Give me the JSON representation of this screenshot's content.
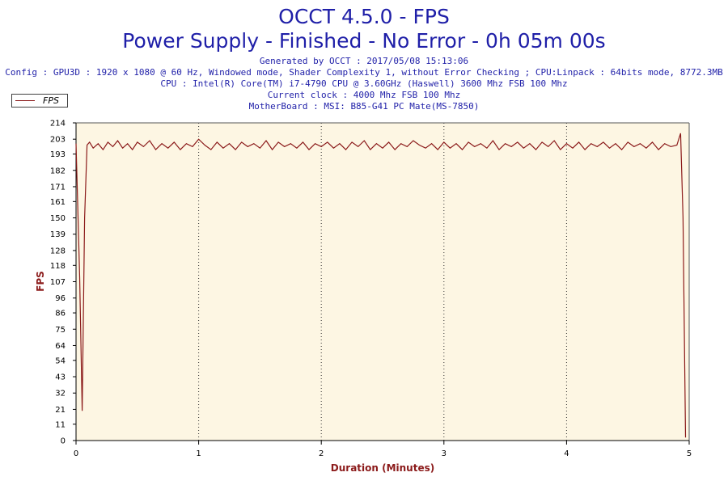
{
  "header": {
    "title": "OCCT 4.5.0 - FPS",
    "subtitle": "Power Supply - Finished - No Error - 0h 05m 00s",
    "info_lines": [
      "Generated by OCCT : 2017/05/08 15:13:06",
      "Config : GPU3D : 1920 x 1080 @ 60 Hz, Windowed mode, Shader Complexity 1, without Error Checking ; CPU:Linpack : 64bits mode, 8772.3MB",
      "CPU : Intel(R) Core(TM) i7-4790 CPU @ 3.60GHz (Haswell) 3600 Mhz FSB 100 Mhz",
      "Current clock : 4000 Mhz FSB 100 Mhz",
      "MotherBoard : MSI: B85-G41 PC Mate(MS-7850)"
    ]
  },
  "colors": {
    "title": "#1f1fa8",
    "series": "#8b1a1a",
    "plot_background": "#fdf6e3",
    "axis_label": "#8b1a1a"
  },
  "chart_data": {
    "type": "line",
    "xlabel": "Duration (Minutes)",
    "ylabel": "FPS",
    "xlim": [
      0,
      5
    ],
    "ylim": [
      0,
      214
    ],
    "x_ticks": [
      0,
      1,
      2,
      3,
      4,
      5
    ],
    "y_ticks": [
      0,
      11,
      21,
      32,
      43,
      54,
      64,
      75,
      86,
      96,
      107,
      118,
      128,
      139,
      150,
      161,
      171,
      182,
      193,
      203,
      214
    ],
    "grid": "vertical dotted",
    "legend": {
      "placement": "top-left",
      "entries": [
        "FPS"
      ]
    },
    "series": [
      {
        "name": "FPS",
        "color": "#8b1a1a",
        "x": [
          0,
          0.03,
          0.05,
          0.07,
          0.09,
          0.11,
          0.14,
          0.18,
          0.22,
          0.26,
          0.3,
          0.34,
          0.38,
          0.42,
          0.46,
          0.5,
          0.55,
          0.6,
          0.65,
          0.7,
          0.75,
          0.8,
          0.85,
          0.9,
          0.95,
          1.0,
          1.05,
          1.1,
          1.15,
          1.2,
          1.25,
          1.3,
          1.35,
          1.4,
          1.45,
          1.5,
          1.55,
          1.6,
          1.65,
          1.7,
          1.75,
          1.8,
          1.85,
          1.9,
          1.95,
          2.0,
          2.05,
          2.1,
          2.15,
          2.2,
          2.25,
          2.3,
          2.35,
          2.4,
          2.45,
          2.5,
          2.55,
          2.6,
          2.65,
          2.7,
          2.75,
          2.8,
          2.85,
          2.9,
          2.95,
          3.0,
          3.05,
          3.1,
          3.15,
          3.2,
          3.25,
          3.3,
          3.35,
          3.4,
          3.45,
          3.5,
          3.55,
          3.6,
          3.65,
          3.7,
          3.75,
          3.8,
          3.85,
          3.9,
          3.95,
          4.0,
          4.05,
          4.1,
          4.15,
          4.2,
          4.25,
          4.3,
          4.35,
          4.4,
          4.45,
          4.5,
          4.55,
          4.6,
          4.65,
          4.7,
          4.75,
          4.8,
          4.85,
          4.9,
          4.93,
          4.95,
          4.97
        ],
        "y": [
          200,
          110,
          20,
          150,
          199,
          201,
          197,
          200,
          196,
          201,
          198,
          202,
          197,
          200,
          196,
          201,
          198,
          202,
          196,
          200,
          197,
          201,
          196,
          200,
          198,
          203,
          199,
          196,
          201,
          197,
          200,
          196,
          201,
          198,
          200,
          197,
          202,
          196,
          201,
          198,
          200,
          197,
          201,
          196,
          200,
          198,
          201,
          197,
          200,
          196,
          201,
          198,
          202,
          196,
          200,
          197,
          201,
          196,
          200,
          198,
          202,
          199,
          197,
          200,
          196,
          201,
          197,
          200,
          196,
          201,
          198,
          200,
          197,
          202,
          196,
          200,
          198,
          201,
          197,
          200,
          196,
          201,
          198,
          202,
          196,
          200,
          197,
          201,
          196,
          200,
          198,
          201,
          197,
          200,
          196,
          201,
          198,
          200,
          197,
          201,
          196,
          200,
          198,
          199,
          207,
          150,
          2
        ]
      }
    ]
  }
}
